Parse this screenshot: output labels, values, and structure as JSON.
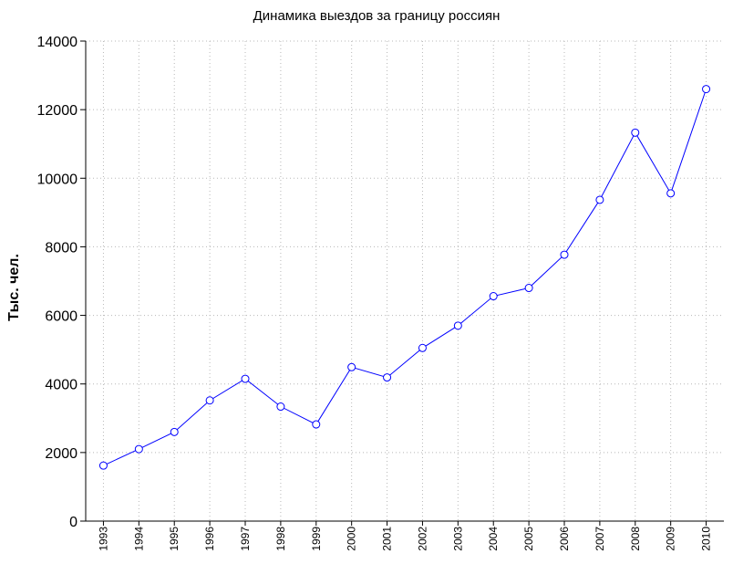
{
  "chart_data": {
    "type": "line",
    "title": "Динамика выездов за границу россиян",
    "xlabel": "",
    "ylabel": "Тыс. чел.",
    "categories": [
      "1993",
      "1994",
      "1995",
      "1996",
      "1997",
      "1998",
      "1999",
      "2000",
      "2001",
      "2002",
      "2003",
      "2004",
      "2005",
      "2006",
      "2007",
      "2008",
      "2009",
      "2010"
    ],
    "series": [
      {
        "values": [
          1620,
          2100,
          2600,
          3520,
          4150,
          3340,
          2820,
          4490,
          4190,
          5050,
          5700,
          6560,
          6800,
          7770,
          9370,
          11330,
          9560,
          12600
        ],
        "color": "#0000ff",
        "marker": "open-circle"
      }
    ],
    "ylim": [
      0,
      14000
    ],
    "yticks": [
      0,
      2000,
      4000,
      6000,
      8000,
      10000,
      12000,
      14000
    ],
    "grid": "dotted",
    "legend": "none"
  }
}
